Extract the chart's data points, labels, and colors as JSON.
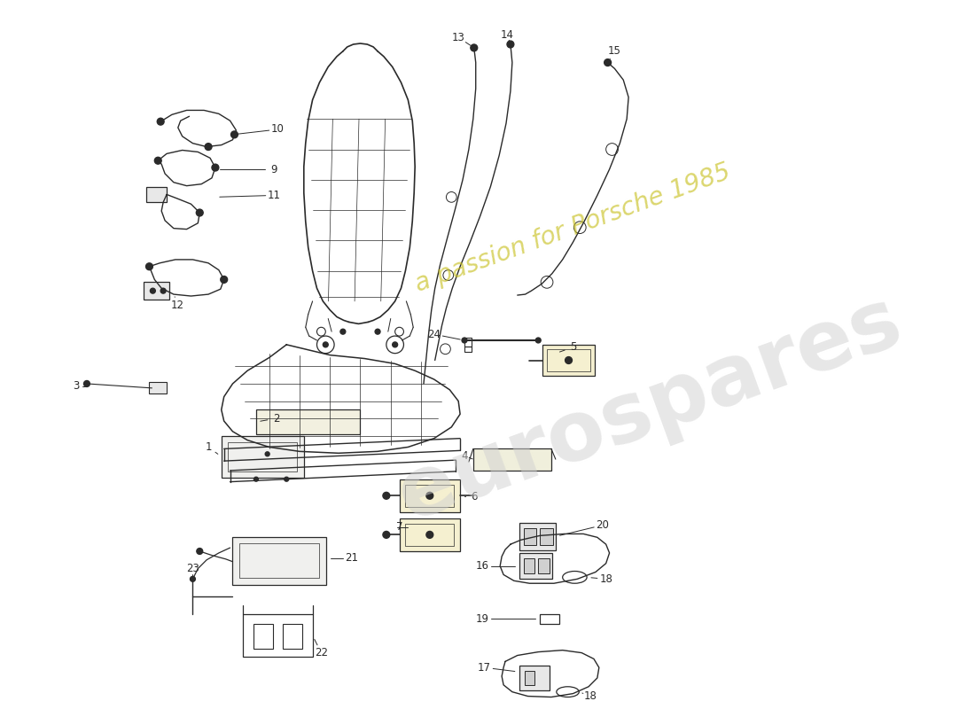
{
  "background_color": "#ffffff",
  "line_color": "#2a2a2a",
  "watermark1": "eurospares",
  "watermark2": "a passion for Porsche 1985",
  "wm1_color": "#d0d0d0",
  "wm2_color": "#c8c020",
  "fig_w": 11.0,
  "fig_h": 8.0,
  "dpi": 100
}
